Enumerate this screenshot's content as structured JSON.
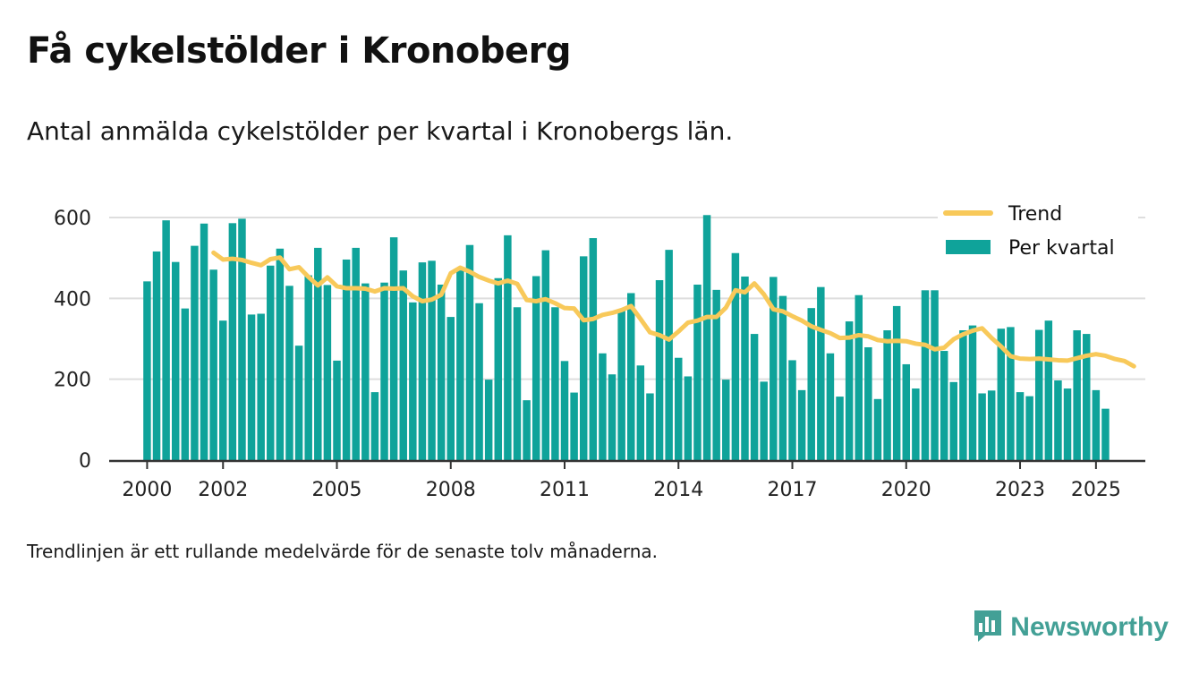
{
  "title": "Få cykelstölder i Kronoberg",
  "subtitle": "Antal anmälda cykelstölder per kvartal i Kronobergs län.",
  "note": "Trendlinjen är ett rullande medelvärde för de senaste tolv månaderna.",
  "brand": {
    "name": "Newsworthy",
    "icon": "newsworthy-logo-icon",
    "color": "#43a096"
  },
  "colors": {
    "bars": "#0fa39a",
    "trend": "#f8c95a",
    "grid": "#dedede",
    "axis": "#333333"
  },
  "chart_data": {
    "type": "bar+line",
    "x_start": 2000.0,
    "x_step": 0.25,
    "xlim": [
      1999.0,
      2026.3
    ],
    "ylim": [
      0,
      600
    ],
    "yticks": [
      0,
      200,
      400,
      600
    ],
    "xticks": [
      2000,
      2002,
      2005,
      2008,
      2011,
      2014,
      2017,
      2020,
      2023,
      2025
    ],
    "grid": true,
    "legend": {
      "position": "top-right",
      "entries": [
        "Trend",
        "Per kvartal"
      ]
    },
    "series": [
      {
        "name": "Per kvartal",
        "type": "bar",
        "values": [
          442,
          516,
          593,
          490,
          375,
          530,
          585,
          471,
          345,
          586,
          597,
          360,
          362,
          481,
          523,
          431,
          283,
          457,
          525,
          433,
          246,
          496,
          525,
          437,
          168,
          439,
          551,
          469,
          390,
          489,
          493,
          434,
          354,
          469,
          532,
          388,
          199,
          450,
          556,
          378,
          148,
          455,
          519,
          378,
          245,
          167,
          504,
          549,
          264,
          212,
          373,
          413,
          234,
          165,
          445,
          520,
          253,
          207,
          434,
          606,
          421,
          199,
          512,
          454,
          312,
          194,
          453,
          406,
          247,
          173,
          376,
          428,
          264,
          157,
          343,
          408,
          279,
          151,
          321,
          381,
          237,
          177,
          420,
          420,
          270,
          193,
          321,
          333,
          165,
          172,
          325,
          329,
          168,
          158,
          322,
          345,
          197,
          177,
          321,
          312,
          173,
          127
        ]
      },
      {
        "name": "Trend",
        "type": "line",
        "start_index": 7,
        "values": [
          513,
          496,
          498,
          495,
          488,
          482,
          497,
          501,
          472,
          477,
          453,
          432,
          452,
          430,
          425,
          425,
          424,
          417,
          425,
          424,
          425,
          405,
          393,
          397,
          409,
          462,
          476,
          466,
          453,
          444,
          437,
          444,
          436,
          396,
          393,
          398,
          388,
          376,
          375,
          346,
          349,
          359,
          364,
          371,
          381,
          349,
          316,
          309,
          298,
          318,
          340,
          345,
          354,
          354,
          377,
          420,
          415,
          437,
          410,
          373,
          368,
          356,
          345,
          331,
          322,
          314,
          302,
          303,
          309,
          306,
          297,
          294,
          295,
          294,
          288,
          285,
          274,
          278,
          299,
          311,
          320,
          326,
          302,
          281,
          257,
          251,
          250,
          251,
          249,
          247,
          246,
          252,
          258,
          262,
          258,
          250,
          245,
          232
        ]
      }
    ]
  }
}
